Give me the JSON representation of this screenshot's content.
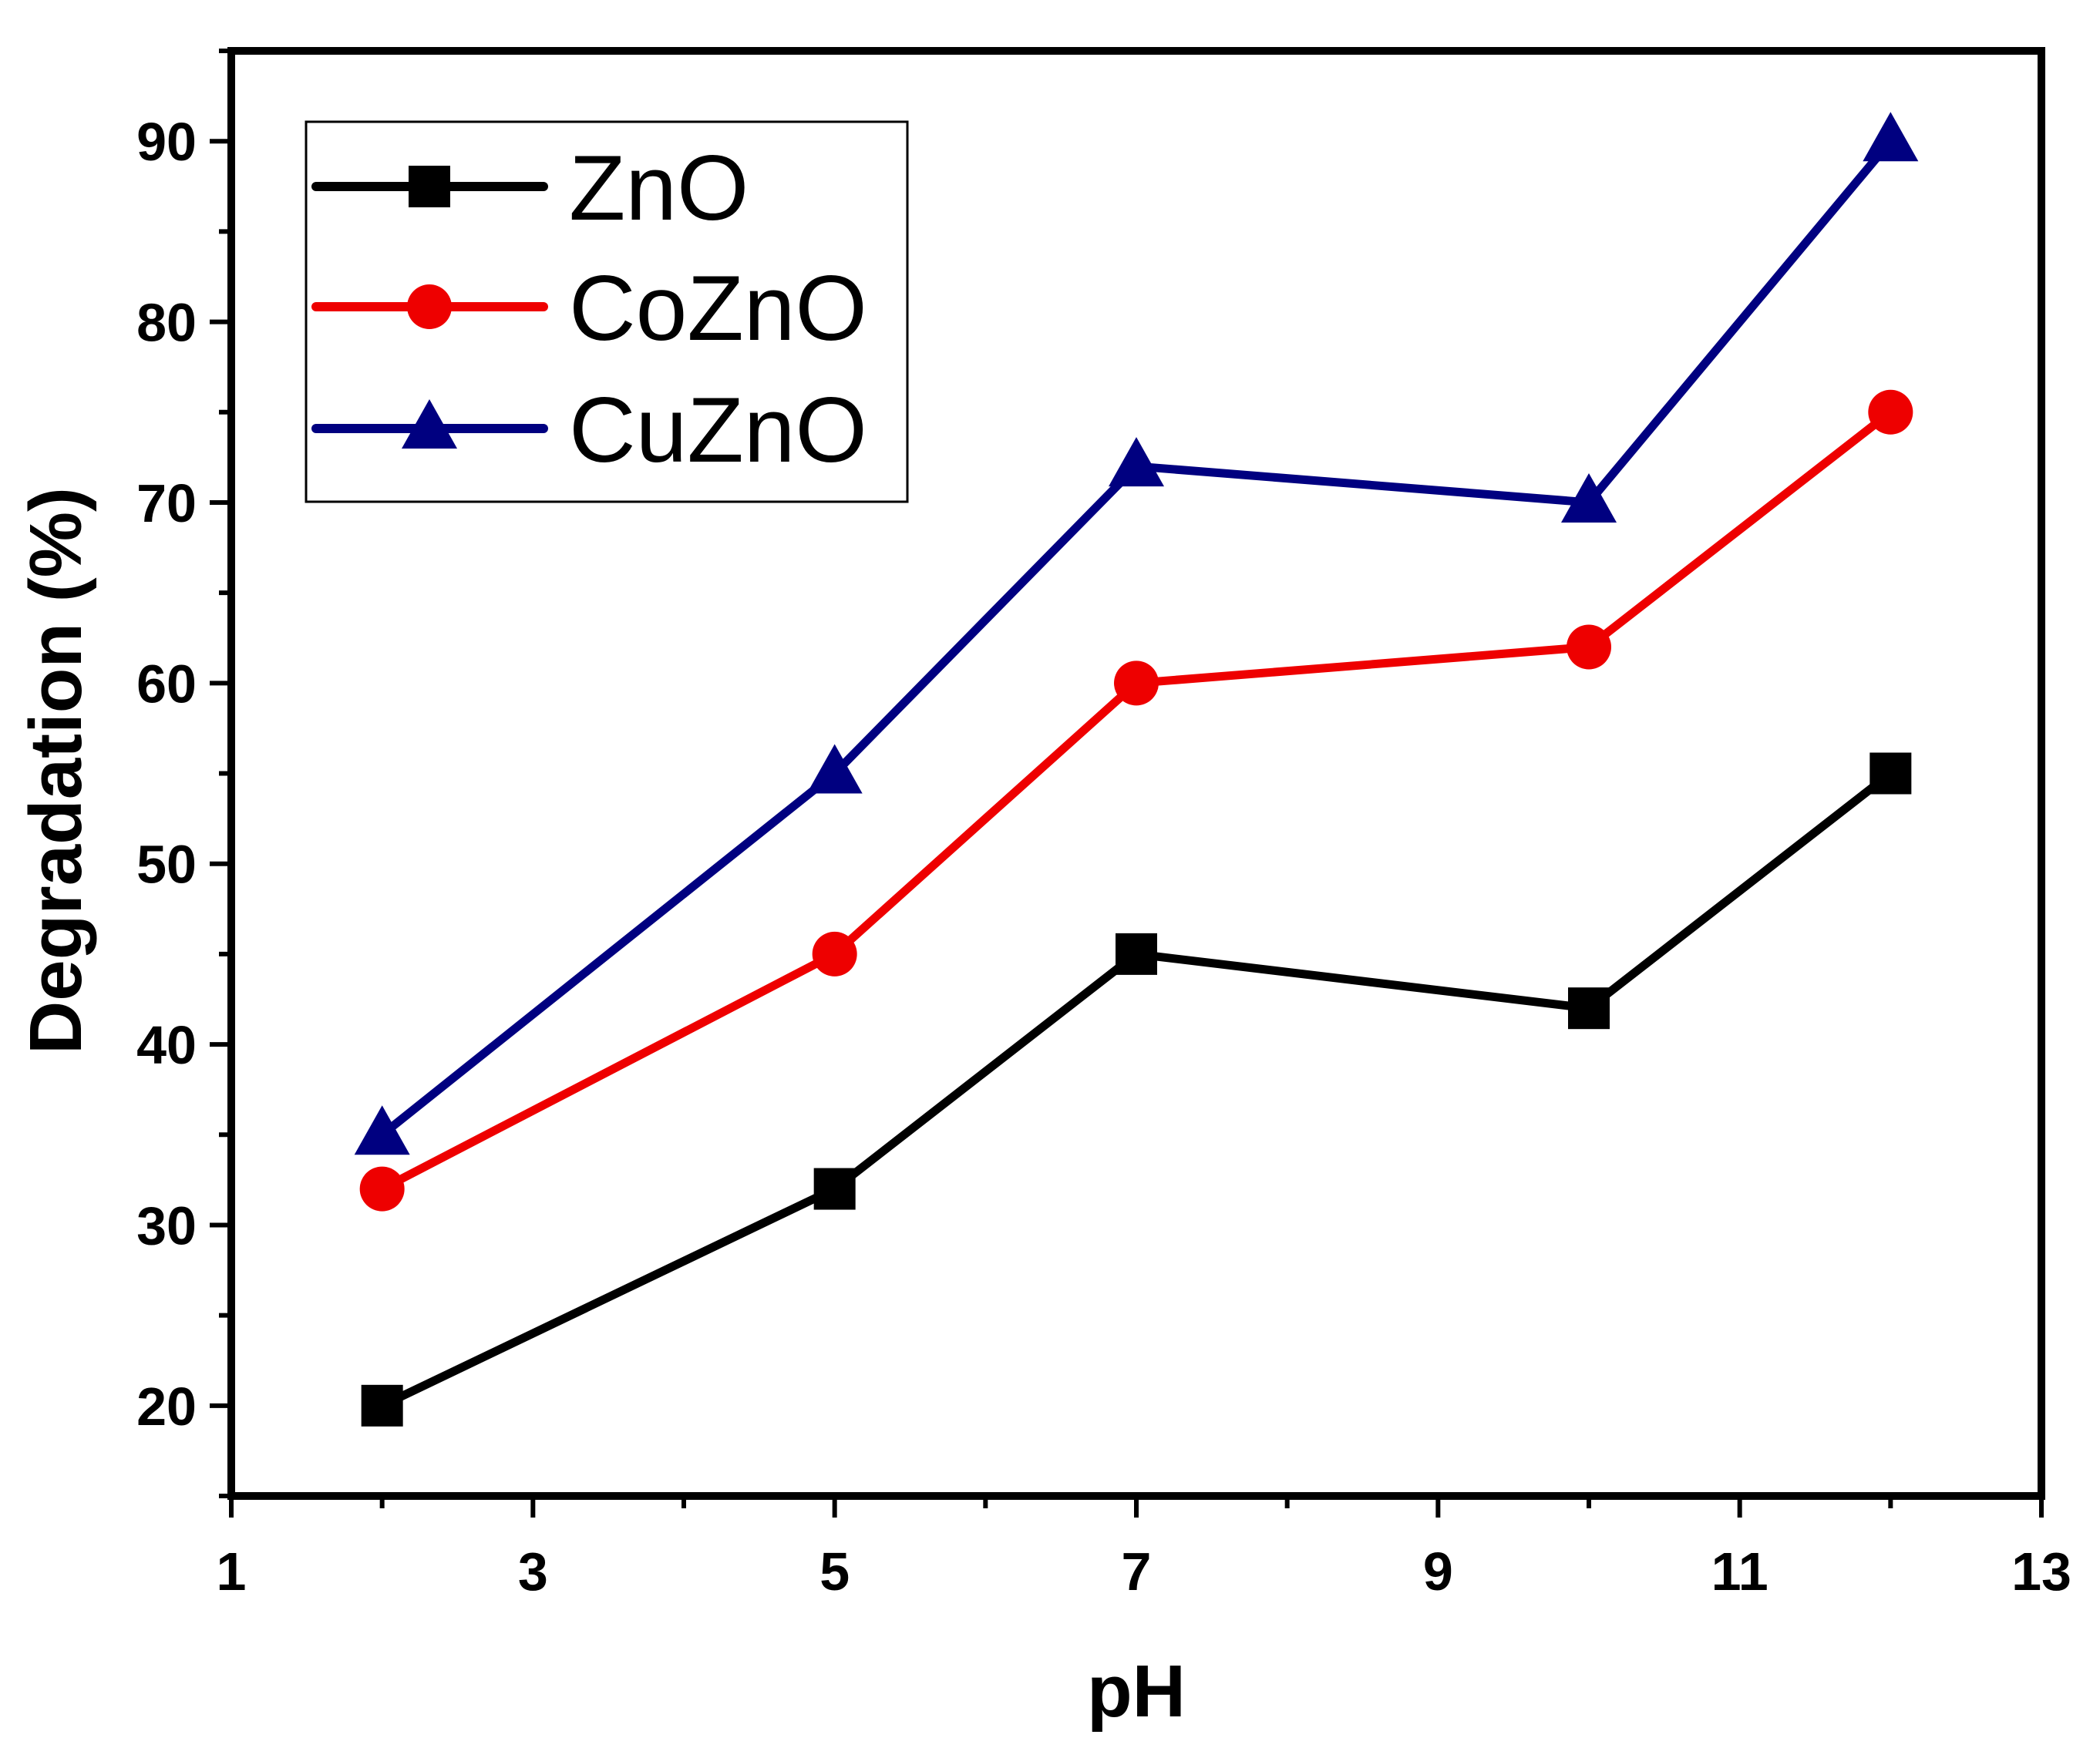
{
  "chart_data": {
    "type": "line",
    "title": "",
    "xlabel": "pH",
    "ylabel": "Degradation (%)",
    "xlim": [
      1,
      13
    ],
    "ylim": [
      15,
      95
    ],
    "xticks": [
      1,
      3,
      5,
      7,
      9,
      11,
      13
    ],
    "yticks": [
      20,
      30,
      40,
      50,
      60,
      70,
      80,
      90
    ],
    "x": [
      2,
      5,
      7,
      10,
      12
    ],
    "legend_position": "top-left",
    "series": [
      {
        "name": "ZnO",
        "color": "#000000",
        "marker": "square",
        "values": [
          20,
          32,
          45,
          42,
          55
        ]
      },
      {
        "name": "CoZnO",
        "color": "#ee0000",
        "marker": "circle",
        "values": [
          32,
          45,
          60,
          62,
          75
        ]
      },
      {
        "name": "CuZnO",
        "color": "#000080",
        "marker": "triangle",
        "values": [
          35,
          55,
          72,
          70,
          90
        ]
      }
    ]
  }
}
